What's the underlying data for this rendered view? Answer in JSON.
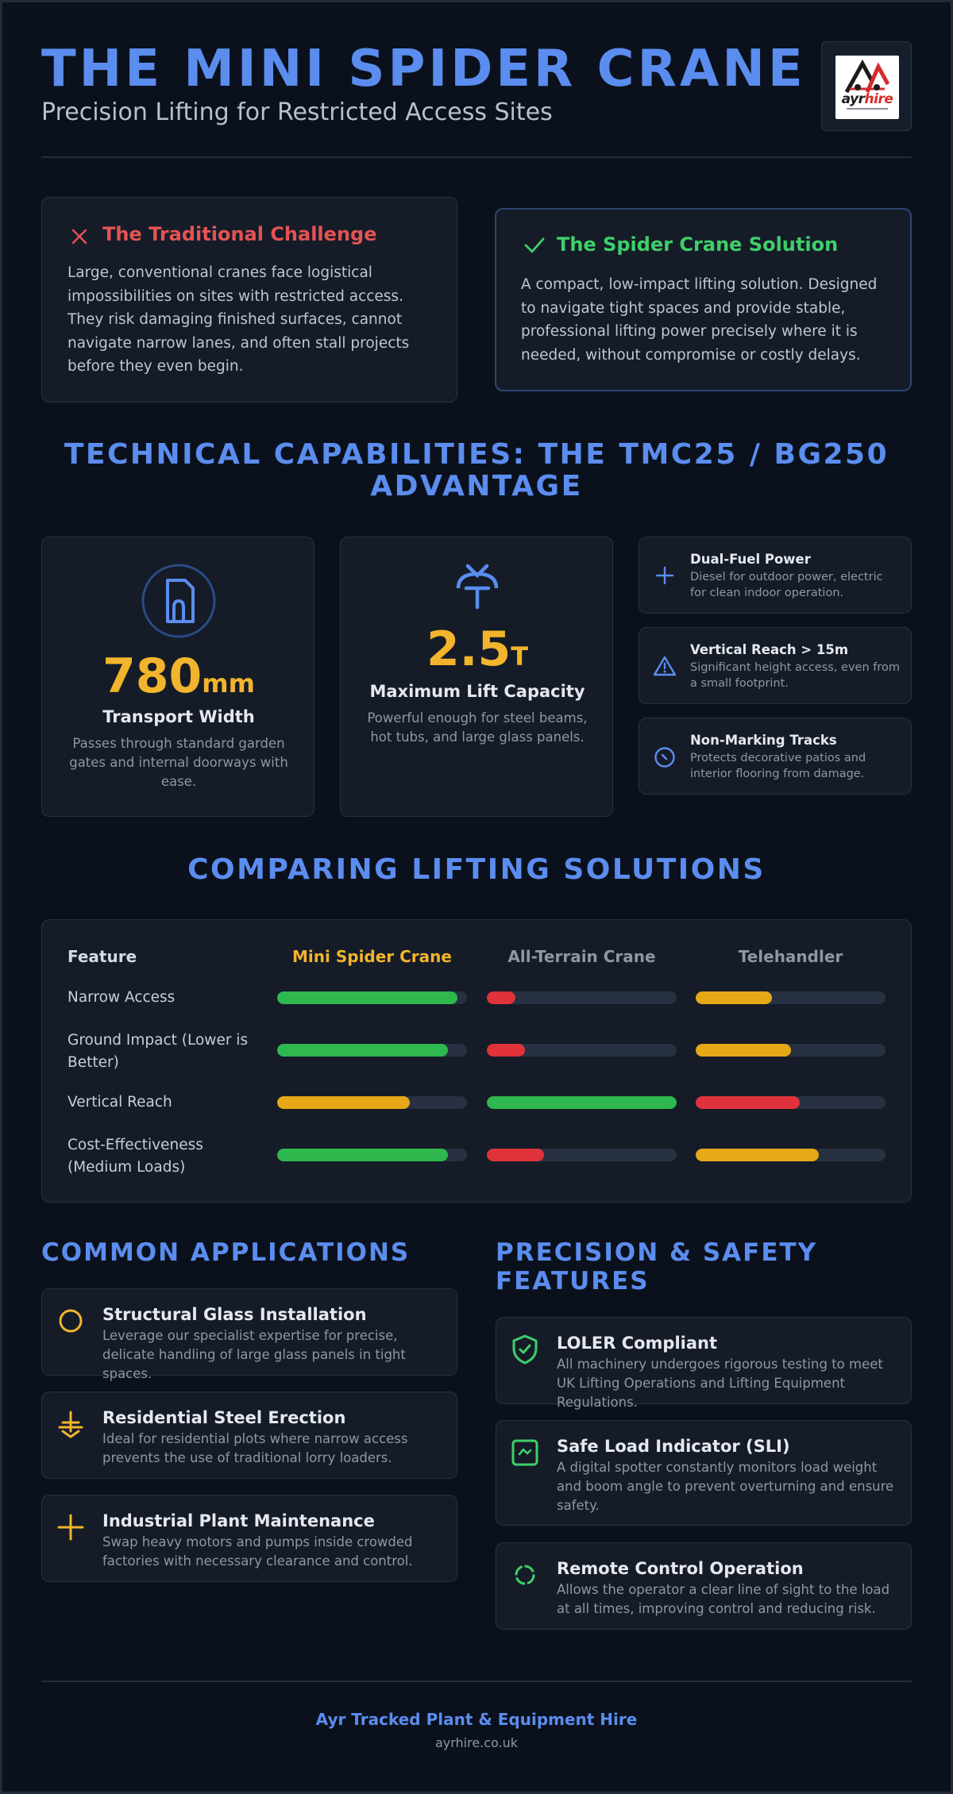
{
  "header": {
    "title": "THE MINI SPIDER CRANE",
    "subtitle": "Precision Lifting for Restricted Access Sites",
    "logo": {
      "part1": "ayr",
      "part2": "hire"
    }
  },
  "challenge": {
    "title": "The Traditional Challenge",
    "body": "Large, conventional cranes face logistical impossibilities on sites with restricted access. They risk damaging finished surfaces, cannot navigate narrow lanes, and often stall projects before they even begin.",
    "icon": "close-icon",
    "color": "#e55353"
  },
  "solution": {
    "title": "The Spider Crane Solution",
    "body": "A compact, low-impact lifting solution. Designed to navigate tight spaces and provide stable, professional lifting power precisely where it is needed, without compromise or costly delays.",
    "icon": "check-icon",
    "color": "#3ecf6a"
  },
  "capabilities": {
    "title": "TECHNICAL CAPABILITIES: THE TMC25 / BG250 ADVANTAGE",
    "stats": [
      {
        "value": "780",
        "unit": "mm",
        "label": "Transport Width",
        "desc": "Passes through standard garden gates and internal doorways with ease.",
        "icon": "door-icon"
      },
      {
        "value": "2.5",
        "unit": "T",
        "label": "Maximum Lift Capacity",
        "desc": "Powerful enough for steel beams, hot tubs, and large glass panels.",
        "icon": "crane-hook-icon"
      }
    ],
    "features": [
      {
        "title": "Dual-Fuel Power",
        "desc": "Diesel for outdoor power, electric for clean indoor operation.",
        "icon": "plus-icon"
      },
      {
        "title": "Vertical Reach > 15m",
        "desc": "Significant height access, even from a small footprint.",
        "icon": "warning-icon"
      },
      {
        "title": "Non-Marking Tracks",
        "desc": "Protects decorative patios and interior flooring from damage.",
        "icon": "gauge-icon"
      }
    ]
  },
  "comparison": {
    "title": "COMPARING LIFTING SOLUTIONS",
    "headers": [
      "Feature",
      "Mini Spider Crane",
      "All-Terrain Crane",
      "Telehandler"
    ],
    "header_colors": [
      "#d5dae3",
      "#f2b42c",
      "#8e97a6",
      "#8e97a6"
    ],
    "rows": [
      {
        "label": "Narrow Access",
        "values": [
          0.95,
          0.15,
          0.4
        ],
        "colors": [
          "#2fb84d",
          "#e0323b",
          "#e6a817"
        ]
      },
      {
        "label": "Ground Impact (Lower is Better)",
        "values": [
          0.9,
          0.2,
          0.5
        ],
        "colors": [
          "#2fb84d",
          "#e0323b",
          "#e6a817"
        ]
      },
      {
        "label": "Vertical Reach",
        "values": [
          0.7,
          1.0,
          0.55
        ],
        "colors": [
          "#e6a817",
          "#2fb84d",
          "#e0323b"
        ]
      },
      {
        "label": "Cost-Effectiveness (Medium Loads)",
        "values": [
          0.9,
          0.3,
          0.65
        ],
        "colors": [
          "#2fb84d",
          "#e0323b",
          "#e6a817"
        ]
      }
    ]
  },
  "applications": {
    "title": "COMMON APPLICATIONS",
    "items": [
      {
        "title": "Structural Glass Installation",
        "desc": "Leverage our specialist expertise for precise, delicate handling of large glass panels in tight spaces.",
        "icon": "circle-icon"
      },
      {
        "title": "Residential Steel Erection",
        "desc": "Ideal for residential plots where narrow access prevents the use of traditional lorry loaders.",
        "icon": "anchor-icon"
      },
      {
        "title": "Industrial Plant Maintenance",
        "desc": "Swap heavy motors and pumps inside crowded factories with necessary clearance and control.",
        "icon": "plus-icon"
      }
    ]
  },
  "safety": {
    "title": "PRECISION & SAFETY FEATURES",
    "items": [
      {
        "title": "LOLER Compliant",
        "desc": "All machinery undergoes rigorous testing to meet UK Lifting Operations and Lifting Equipment Regulations.",
        "icon": "shield-check-icon"
      },
      {
        "title": "Safe Load Indicator (SLI)",
        "desc": "A digital spotter constantly monitors load weight and boom angle to prevent overturning and ensure safety.",
        "icon": "monitor-icon"
      },
      {
        "title": "Remote Control Operation",
        "desc": "Allows the operator a clear line of sight to the load at all times, improving control and reducing risk.",
        "icon": "remote-icon"
      }
    ]
  },
  "footer": {
    "company": "Ayr Tracked Plant & Equipment Hire",
    "url": "ayrhire.co.uk"
  }
}
